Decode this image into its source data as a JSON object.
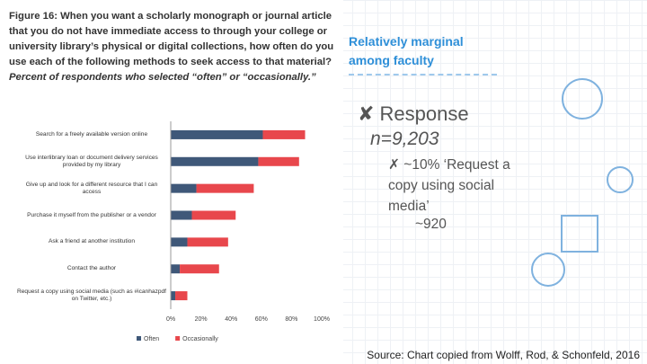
{
  "chart_data": {
    "type": "stacked_barh",
    "title": "Figure 16: When you want a scholarly monograph or journal article that you do not have immediate access to through your college or university library’s physical or digital collections, how often do you use each of the following methods to seek access to that material?",
    "subtitle": "Percent of respondents who selected “often” or “occasionally.”",
    "categories": [
      "Search for a freely available version online",
      "Use interlibrary loan or document delivery services provided by my library",
      "Give up and look for a different resource that I can access",
      "Purchase it myself from the publisher or a vendor",
      "Ask a friend at another institution",
      "Contact the author",
      "Request a copy using social media (such as #icanhazpdf on Twitter, etc.)"
    ],
    "series": [
      {
        "name": "Often",
        "color": "#3f5879",
        "values": [
          61,
          58,
          17,
          14,
          11,
          6,
          3
        ]
      },
      {
        "name": "Occasionally",
        "color": "#e8474c",
        "values": [
          28,
          27,
          38,
          29,
          27,
          26,
          8
        ]
      }
    ],
    "xlim": [
      0,
      100
    ],
    "xticks": [
      {
        "value": 0,
        "label": "0%"
      },
      {
        "value": 20,
        "label": "20%"
      },
      {
        "value": 40,
        "label": "40%"
      },
      {
        "value": 60,
        "label": "60%"
      },
      {
        "value": 80,
        "label": "80%"
      },
      {
        "value": 100,
        "label": "100%"
      }
    ],
    "grid": false,
    "legend": "bottom"
  },
  "slide": {
    "heading": "Relatively marginal among faculty",
    "bullet": "✘ Response",
    "n": "n=9,203",
    "sub_bullet": "✗ ~10% ‘Request a copy using social media’",
    "sub_count": "~920",
    "source": "Source: Chart copied from Wolff, Rod, & Schonfeld, 2016"
  }
}
